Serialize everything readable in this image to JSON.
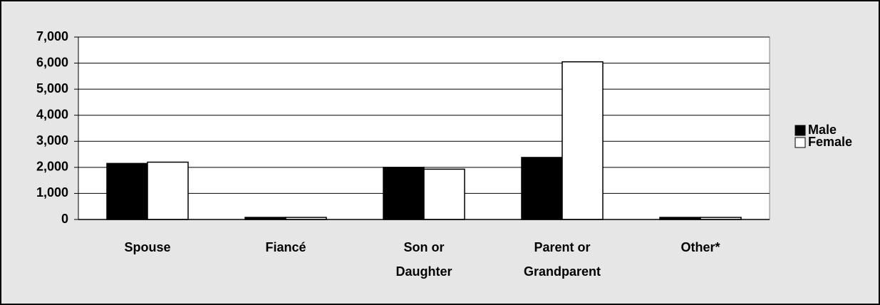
{
  "chart_data": {
    "type": "bar",
    "categories": [
      "Spouse",
      "Fiancé",
      "Son or Daughter",
      "Parent or Grandparent",
      "Other*"
    ],
    "series": [
      {
        "name": "Male",
        "color": "#000000",
        "values": [
          2150,
          80,
          2000,
          2380,
          80
        ]
      },
      {
        "name": "Female",
        "color": "#ffffff",
        "values": [
          2200,
          80,
          1930,
          6050,
          80
        ]
      }
    ],
    "ylim": [
      0,
      7000
    ],
    "yticks": [
      0,
      {
        "value": 1000,
        "label": "1,000"
      },
      {
        "value": 2000,
        "label": "2,000"
      },
      {
        "value": 3000,
        "label": "3,000"
      },
      {
        "value": 4000,
        "label": "4,000"
      },
      {
        "value": 5000,
        "label": "5,000"
      },
      {
        "value": 6000,
        "label": "6,000"
      },
      {
        "value": 7000,
        "label": "7,000"
      }
    ],
    "grid": true,
    "legend": "right"
  }
}
